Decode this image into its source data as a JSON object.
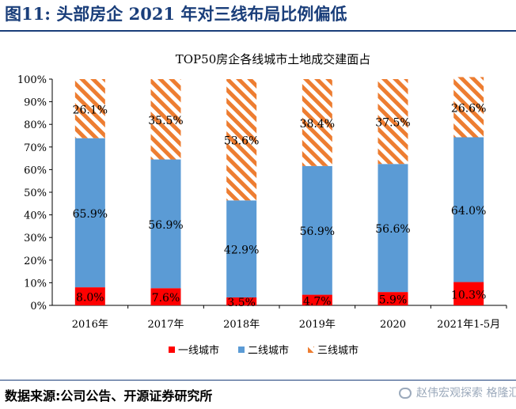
{
  "figure": {
    "title": "图11:  头部房企 2021 年对三线布局比例偏低",
    "source": "数据来源:公司公告、开源证券研究所",
    "watermark": "赵伟宏观探索  格隆汇"
  },
  "chart_data": {
    "type": "bar",
    "stacked": true,
    "title": "TOP50房企各线城市土地成交建面占",
    "xlabel": "",
    "ylabel": "",
    "ylim": [
      0,
      100
    ],
    "yticks": [
      "0%",
      "10%",
      "20%",
      "30%",
      "40%",
      "50%",
      "60%",
      "70%",
      "80%",
      "90%",
      "100%"
    ],
    "categories": [
      "2016年",
      "2017年",
      "2018年",
      "2019年",
      "2020",
      "2021年1-5月"
    ],
    "series": [
      {
        "name": "一线城市",
        "color": "#ff0000",
        "pattern": "solid",
        "values": [
          8.0,
          7.6,
          3.5,
          4.7,
          5.9,
          10.3
        ],
        "labels": [
          "8.0%",
          "7.6%",
          "3.5%",
          "4.7%",
          "5.9%",
          "10.3%"
        ]
      },
      {
        "name": "二线城市",
        "color": "#5b9bd5",
        "pattern": "solid",
        "values": [
          65.9,
          56.9,
          42.9,
          56.9,
          56.6,
          64.0
        ],
        "labels": [
          "65.9%",
          "56.9%",
          "42.9%",
          "56.9%",
          "56.6%",
          "64.0%"
        ]
      },
      {
        "name": "三线城市",
        "color": "#ed7d31",
        "pattern": "diagonal-stripes",
        "values": [
          26.1,
          35.5,
          53.6,
          38.4,
          37.5,
          26.6
        ],
        "labels": [
          "26.1%",
          "35.5%",
          "53.6%",
          "38.4%",
          "37.5%",
          "26.6%"
        ]
      }
    ],
    "legend": {
      "position": "bottom"
    },
    "grid": false
  }
}
